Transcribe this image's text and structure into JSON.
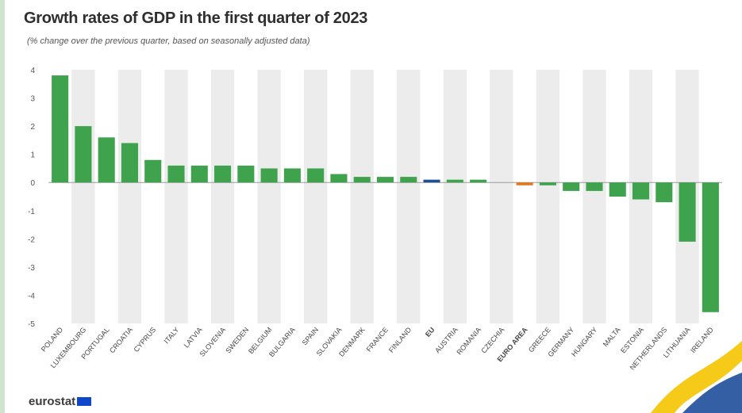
{
  "chart_data": {
    "type": "bar",
    "title": "Growth rates of GDP in the first quarter of 2023",
    "subtitle": "(% change over the previous quarter, based on seasonally adjusted data)",
    "categories": [
      "POLAND",
      "LUXEMBOURG",
      "PORTUGAL",
      "CROATIA",
      "CYPRUS",
      "ITALY",
      "LATVIA",
      "SLOVENIA",
      "SWEDEN",
      "BELGIUM",
      "BULGARIA",
      "SPAIN",
      "SLOVAKIA",
      "DENMARK",
      "FRANCE",
      "FINLAND",
      "EU",
      "AUSTRIA",
      "ROMANIA",
      "CZECHIA",
      "EURO AREA",
      "GREECE",
      "GERMANY",
      "HUNGARY",
      "MALTA",
      "ESTONIA",
      "NETHERLANDS",
      "LITHUANIA",
      "IRELAND"
    ],
    "values": [
      3.8,
      2.0,
      1.6,
      1.4,
      0.8,
      0.6,
      0.6,
      0.6,
      0.6,
      0.5,
      0.5,
      0.5,
      0.3,
      0.2,
      0.2,
      0.2,
      0.1,
      0.1,
      0.1,
      0.0,
      -0.1,
      -0.1,
      -0.3,
      -0.3,
      -0.5,
      -0.6,
      -0.7,
      -2.1,
      -4.6
    ],
    "yticks": [
      4,
      3,
      2,
      1,
      0,
      -1,
      -2,
      -3,
      -4,
      -5
    ],
    "ylim": [
      -5,
      4
    ],
    "grid": false,
    "colors": {
      "default": "#3fa34d",
      "EU": "#1f4e9b",
      "EURO AREA": "#e07b1f",
      "band": "#ececec",
      "zero_line": "#9a9a9a"
    }
  },
  "footer": {
    "brand": "eurostat"
  }
}
